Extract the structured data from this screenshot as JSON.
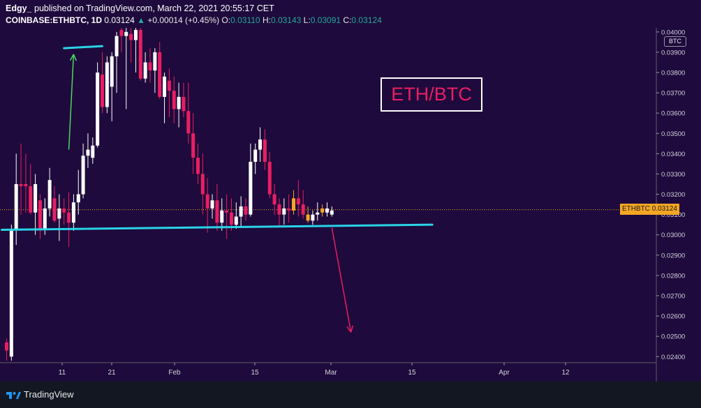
{
  "header": {
    "author": "Edgy_",
    "published": "published on TradingView.com, March 22, 2021 20:55:17 CET",
    "symbol": "COINBASE:ETHBTC, 1D",
    "last": "0.03124",
    "change": "+0.00014 (+0.45%)",
    "o_label": "O:",
    "o": "0.03110",
    "h_label": "H:",
    "h": "0.03143",
    "l_label": "L:",
    "l": "0.03091",
    "c_label": "C:",
    "c": "0.03124"
  },
  "price_axis": {
    "currency": "BTC",
    "ticks": [
      "0.04000",
      "0.03900",
      "0.03800",
      "0.03700",
      "0.03600",
      "0.03500",
      "0.03400",
      "0.03300",
      "0.03200",
      "0.03100",
      "0.03000",
      "0.02900",
      "0.02800",
      "0.02700",
      "0.02600",
      "0.02500",
      "0.02400"
    ]
  },
  "time_axis": {
    "ticks": [
      "11",
      "21",
      "Feb",
      "15",
      "Mar",
      "15",
      "Apr",
      "12"
    ]
  },
  "price_label": {
    "symbol": "ETHBTC",
    "price": "0.03124"
  },
  "annotation": {
    "text": "ETH/BTC"
  },
  "footer": {
    "brand": "TradingView"
  },
  "colors": {
    "background": "#1e0a3c",
    "up": "#ffffff",
    "down": "#e91e63",
    "support_line": "#29d4e8",
    "arrow_down": "#e91e63",
    "arrow_up": "#4cd964",
    "price_tag": "#f5a623"
  },
  "chart_data": {
    "type": "candlestick",
    "symbol": "COINBASE:ETHBTC",
    "interval": "1D",
    "ylim": [
      0.0237,
      0.0402
    ],
    "candles": [
      {
        "o": 0.0247,
        "h": 0.0249,
        "l": 0.0238,
        "c": 0.0243
      },
      {
        "o": 0.024,
        "h": 0.0305,
        "l": 0.0238,
        "c": 0.0302
      },
      {
        "o": 0.0303,
        "h": 0.034,
        "l": 0.0295,
        "c": 0.0325
      },
      {
        "o": 0.0325,
        "h": 0.0345,
        "l": 0.031,
        "c": 0.0324
      },
      {
        "o": 0.0325,
        "h": 0.034,
        "l": 0.0311,
        "c": 0.0324
      },
      {
        "o": 0.0324,
        "h": 0.0335,
        "l": 0.031,
        "c": 0.0311
      },
      {
        "o": 0.0311,
        "h": 0.033,
        "l": 0.03,
        "c": 0.0325
      },
      {
        "o": 0.0317,
        "h": 0.032,
        "l": 0.0298,
        "c": 0.0303
      },
      {
        "o": 0.0303,
        "h": 0.0318,
        "l": 0.03,
        "c": 0.0313
      },
      {
        "o": 0.0313,
        "h": 0.0333,
        "l": 0.0309,
        "c": 0.0327
      },
      {
        "o": 0.0318,
        "h": 0.0324,
        "l": 0.0306,
        "c": 0.0307
      },
      {
        "o": 0.0308,
        "h": 0.032,
        "l": 0.0297,
        "c": 0.0313
      },
      {
        "o": 0.0313,
        "h": 0.0318,
        "l": 0.0305,
        "c": 0.0311
      },
      {
        "o": 0.0311,
        "h": 0.0321,
        "l": 0.0294,
        "c": 0.0306
      },
      {
        "o": 0.0306,
        "h": 0.032,
        "l": 0.0302,
        "c": 0.0316
      },
      {
        "o": 0.0316,
        "h": 0.0332,
        "l": 0.031,
        "c": 0.032
      },
      {
        "o": 0.032,
        "h": 0.0345,
        "l": 0.0318,
        "c": 0.0339
      },
      {
        "o": 0.0339,
        "h": 0.035,
        "l": 0.0333,
        "c": 0.0342
      },
      {
        "o": 0.0338,
        "h": 0.0348,
        "l": 0.0335,
        "c": 0.0344
      },
      {
        "o": 0.0344,
        "h": 0.0385,
        "l": 0.0343,
        "c": 0.038
      },
      {
        "o": 0.0379,
        "h": 0.039,
        "l": 0.036,
        "c": 0.0363
      },
      {
        "o": 0.0363,
        "h": 0.0388,
        "l": 0.036,
        "c": 0.0385
      },
      {
        "o": 0.0373,
        "h": 0.039,
        "l": 0.0356,
        "c": 0.0388
      },
      {
        "o": 0.0388,
        "h": 0.04,
        "l": 0.037,
        "c": 0.0398
      },
      {
        "o": 0.0401,
        "h": 0.0402,
        "l": 0.039,
        "c": 0.0398
      },
      {
        "o": 0.0398,
        "h": 0.0402,
        "l": 0.0362,
        "c": 0.04
      },
      {
        "o": 0.0399,
        "h": 0.0402,
        "l": 0.0385,
        "c": 0.0396
      },
      {
        "o": 0.0396,
        "h": 0.0402,
        "l": 0.038,
        "c": 0.0401
      },
      {
        "o": 0.0401,
        "h": 0.0402,
        "l": 0.0376,
        "c": 0.0377
      },
      {
        "o": 0.0377,
        "h": 0.039,
        "l": 0.0375,
        "c": 0.0385
      },
      {
        "o": 0.0385,
        "h": 0.0392,
        "l": 0.0375,
        "c": 0.0381
      },
      {
        "o": 0.0381,
        "h": 0.0392,
        "l": 0.037,
        "c": 0.039
      },
      {
        "o": 0.039,
        "h": 0.0395,
        "l": 0.0367,
        "c": 0.0368
      },
      {
        "o": 0.0368,
        "h": 0.038,
        "l": 0.0355,
        "c": 0.0378
      },
      {
        "o": 0.0376,
        "h": 0.0382,
        "l": 0.0358,
        "c": 0.0371
      },
      {
        "o": 0.0371,
        "h": 0.0378,
        "l": 0.0355,
        "c": 0.0362
      },
      {
        "o": 0.0362,
        "h": 0.0375,
        "l": 0.0353,
        "c": 0.0368
      },
      {
        "o": 0.0368,
        "h": 0.0375,
        "l": 0.0358,
        "c": 0.0361
      },
      {
        "o": 0.0361,
        "h": 0.0375,
        "l": 0.0345,
        "c": 0.035
      },
      {
        "o": 0.035,
        "h": 0.036,
        "l": 0.033,
        "c": 0.0338
      },
      {
        "o": 0.0338,
        "h": 0.0345,
        "l": 0.0325,
        "c": 0.033
      },
      {
        "o": 0.033,
        "h": 0.034,
        "l": 0.031,
        "c": 0.032
      },
      {
        "o": 0.032,
        "h": 0.0328,
        "l": 0.0301,
        "c": 0.0313
      },
      {
        "o": 0.0313,
        "h": 0.032,
        "l": 0.0308,
        "c": 0.0317
      },
      {
        "o": 0.0317,
        "h": 0.0325,
        "l": 0.0302,
        "c": 0.0306
      },
      {
        "o": 0.0306,
        "h": 0.0318,
        "l": 0.0302,
        "c": 0.0312
      },
      {
        "o": 0.0312,
        "h": 0.032,
        "l": 0.0298,
        "c": 0.0311
      },
      {
        "o": 0.0311,
        "h": 0.0318,
        "l": 0.0302,
        "c": 0.0305
      },
      {
        "o": 0.0305,
        "h": 0.0316,
        "l": 0.0303,
        "c": 0.0309
      },
      {
        "o": 0.0309,
        "h": 0.0319,
        "l": 0.0304,
        "c": 0.0314
      },
      {
        "o": 0.0314,
        "h": 0.0318,
        "l": 0.0307,
        "c": 0.031
      },
      {
        "o": 0.031,
        "h": 0.0345,
        "l": 0.0309,
        "c": 0.0336
      },
      {
        "o": 0.0336,
        "h": 0.0345,
        "l": 0.033,
        "c": 0.0342
      },
      {
        "o": 0.0342,
        "h": 0.0353,
        "l": 0.0336,
        "c": 0.0347
      },
      {
        "o": 0.0347,
        "h": 0.0352,
        "l": 0.0332,
        "c": 0.0336
      },
      {
        "o": 0.0336,
        "h": 0.0341,
        "l": 0.0318,
        "c": 0.032
      },
      {
        "o": 0.032,
        "h": 0.0325,
        "l": 0.031,
        "c": 0.0315
      },
      {
        "o": 0.0315,
        "h": 0.0318,
        "l": 0.0304,
        "c": 0.031
      },
      {
        "o": 0.031,
        "h": 0.0318,
        "l": 0.0305,
        "c": 0.0313
      },
      {
        "o": 0.0313,
        "h": 0.032,
        "l": 0.0306,
        "c": 0.0312
      },
      {
        "o": 0.0312,
        "h": 0.0322,
        "l": 0.031,
        "c": 0.0318
      },
      {
        "o": 0.0318,
        "h": 0.0327,
        "l": 0.0309,
        "c": 0.0315
      },
      {
        "o": 0.0315,
        "h": 0.0322,
        "l": 0.0308,
        "c": 0.031
      },
      {
        "o": 0.031,
        "h": 0.0314,
        "l": 0.0306,
        "c": 0.0307
      },
      {
        "o": 0.0307,
        "h": 0.0312,
        "l": 0.0305,
        "c": 0.031
      },
      {
        "o": 0.031,
        "h": 0.0316,
        "l": 0.0307,
        "c": 0.0311
      },
      {
        "o": 0.0311,
        "h": 0.0315,
        "l": 0.0309,
        "c": 0.0313
      },
      {
        "o": 0.0311,
        "h": 0.0316,
        "l": 0.0309,
        "c": 0.0313
      },
      {
        "o": 0.031,
        "h": 0.0314,
        "l": 0.0309,
        "c": 0.0312
      }
    ],
    "current_price": 0.03124,
    "drawings": [
      {
        "type": "trendline",
        "name": "support",
        "from": {
          "bar": -1,
          "price": 0.03025
        },
        "to": {
          "bar": 89,
          "price": 0.0305
        }
      },
      {
        "type": "trendline",
        "name": "resistance",
        "from": {
          "bar": 12,
          "price": 0.0392
        },
        "to": {
          "bar": 20,
          "price": 0.0393
        }
      },
      {
        "type": "arrow",
        "name": "arrow-down",
        "from": {
          "bar": 68,
          "price": 0.03035
        },
        "to": {
          "bar": 72,
          "price": 0.0252
        }
      },
      {
        "type": "arrow",
        "name": "arrow-up",
        "from": {
          "bar": 13,
          "price": 0.0342
        },
        "to": {
          "bar": 14,
          "price": 0.0389
        }
      }
    ]
  }
}
